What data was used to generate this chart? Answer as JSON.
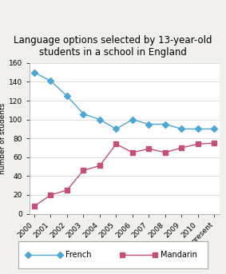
{
  "title": "Language options selected by 13-year-old\nstudents in a school in England",
  "ylabel": "number of students",
  "years": [
    "2000",
    "2001",
    "2002",
    "2003",
    "2004",
    "2005",
    "2006",
    "2007",
    "2008",
    "2009",
    "2010",
    "present"
  ],
  "french": [
    150,
    141,
    125,
    106,
    100,
    90,
    100,
    95,
    95,
    90,
    90,
    90
  ],
  "mandarin": [
    8,
    20,
    25,
    46,
    51,
    74,
    65,
    69,
    65,
    70,
    74,
    75
  ],
  "french_color": "#4da6d4",
  "mandarin_color": "#c4507a",
  "french_marker": "D",
  "mandarin_marker": "s",
  "ylim": [
    0,
    160
  ],
  "yticks": [
    0,
    20,
    40,
    60,
    80,
    100,
    120,
    140,
    160
  ],
  "title_fontsize": 8.5,
  "legend_labels": [
    "French",
    "Mandarin"
  ],
  "background_color": "#f2f0ec",
  "plot_background": "#ffffff",
  "grid_color": "#d8d8d8",
  "tick_fontsize": 6.5,
  "ylabel_fontsize": 6.5
}
